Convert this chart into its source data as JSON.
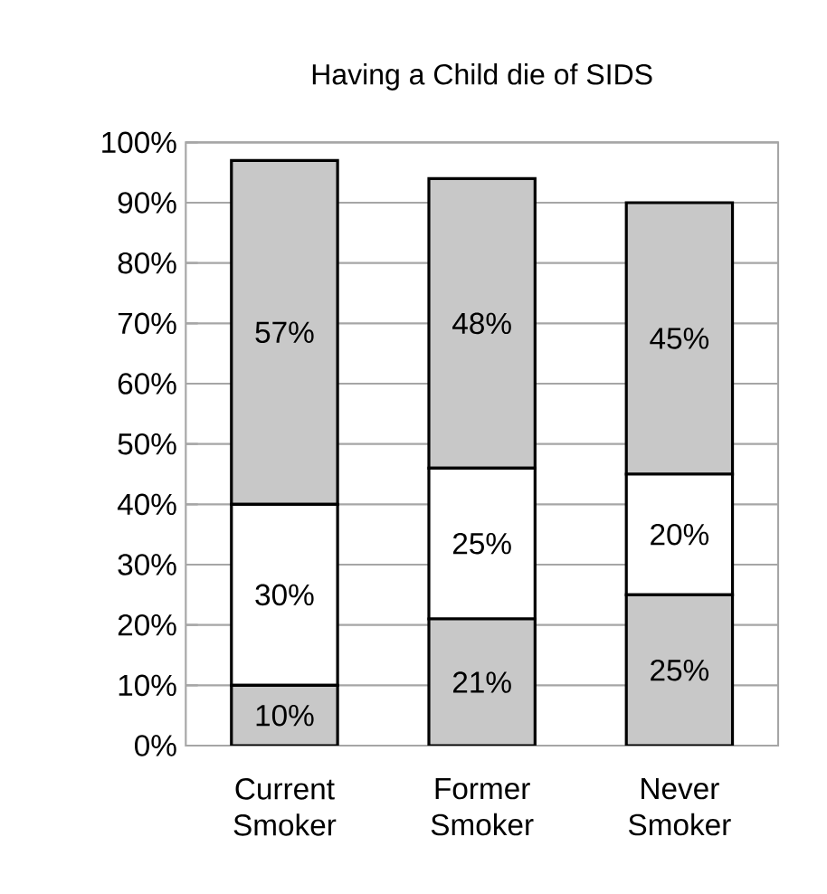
{
  "chart_data": {
    "type": "bar",
    "title": "Having a Child die of SIDS",
    "stacked": true,
    "categories": [
      "Current Smoker",
      "Former Smoker",
      "Never Smoker"
    ],
    "series": [
      {
        "color": "#c8c8c8",
        "values": [
          10,
          21,
          25
        ],
        "value_labels": [
          "10%",
          "21%",
          "25%"
        ]
      },
      {
        "color": "#ffffff",
        "values": [
          30,
          25,
          20
        ],
        "value_labels": [
          "30%",
          "25%",
          "20%"
        ]
      },
      {
        "color": "#c8c8c8",
        "values": [
          57,
          48,
          45
        ],
        "value_labels": [
          "57%",
          "48%",
          "45%"
        ]
      }
    ],
    "ylim": [
      0,
      100
    ],
    "yticks": [
      {
        "value": 0,
        "label": "0%"
      },
      {
        "value": 10,
        "label": "10%"
      },
      {
        "value": 20,
        "label": "20%"
      },
      {
        "value": 30,
        "label": "30%"
      },
      {
        "value": 40,
        "label": "40%"
      },
      {
        "value": 50,
        "label": "50%"
      },
      {
        "value": 60,
        "label": "60%"
      },
      {
        "value": 70,
        "label": "70%"
      },
      {
        "value": 80,
        "label": "80%"
      },
      {
        "value": 90,
        "label": "90%"
      },
      {
        "value": 100,
        "label": "100%"
      }
    ],
    "grid": "y"
  }
}
